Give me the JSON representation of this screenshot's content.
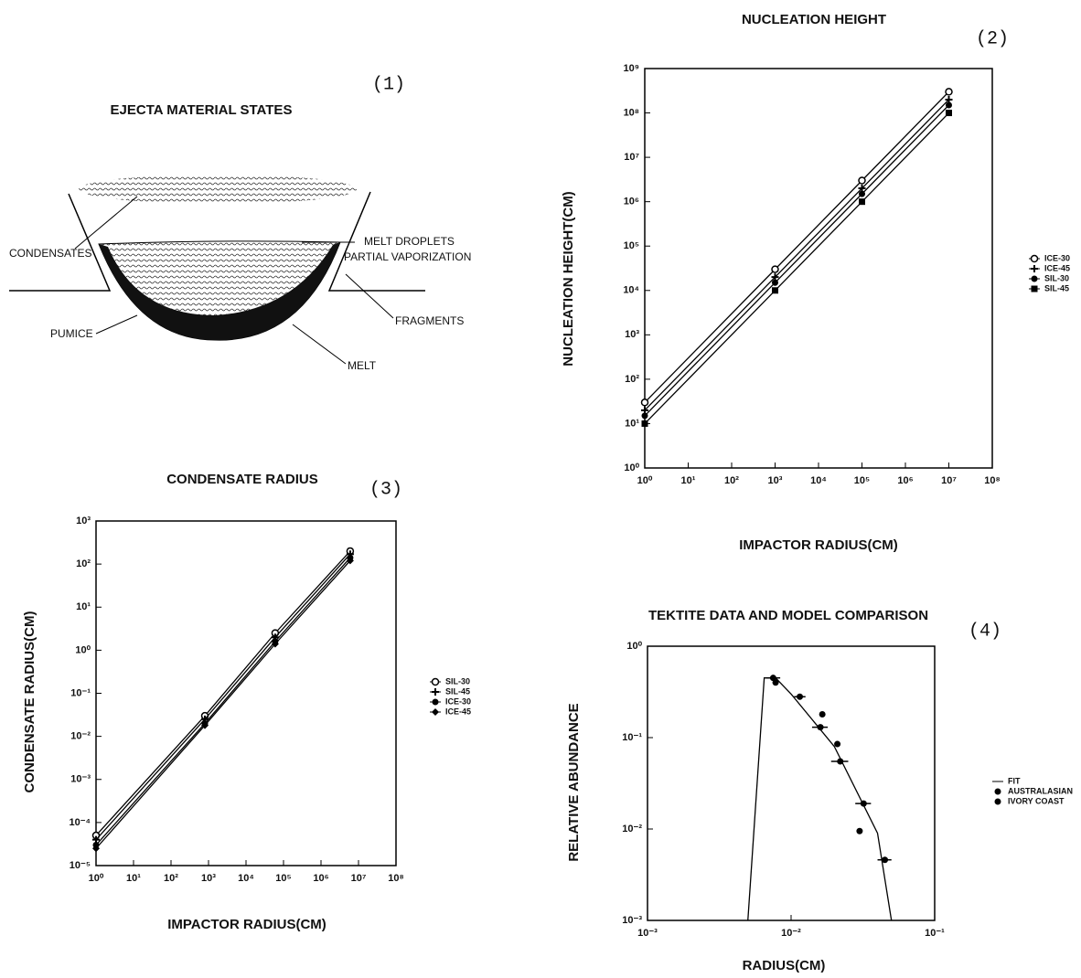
{
  "diagram": {
    "title": "EJECTA MATERIAL STATES",
    "panel_label": "(1)",
    "labels": [
      "CONDENSATES",
      "MELT DROPLETS",
      "PARTIAL VAPORIZATION",
      "FRAGMENTS",
      "PUMICE",
      "MELT"
    ]
  },
  "chart_data": [
    {
      "type": "line",
      "title": "NUCLEATION HEIGHT",
      "panel_label": "(2)",
      "x_label": "IMPACTOR RADIUS(CM)",
      "y_label": "NUCLEATION HEIGHT(CM)",
      "log": true,
      "xlim": [
        1,
        100000000
      ],
      "ylim": [
        1,
        1000000000
      ],
      "xticks": [
        {
          "value": 1,
          "label": "10⁰"
        },
        {
          "value": 10,
          "label": "10¹"
        },
        {
          "value": 100,
          "label": "10²"
        },
        {
          "value": 1000,
          "label": "10³"
        },
        {
          "value": 10000,
          "label": "10⁴"
        },
        {
          "value": 100000,
          "label": "10⁵"
        },
        {
          "value": 1000000,
          "label": "10⁶"
        },
        {
          "value": 10000000,
          "label": "10⁷"
        },
        {
          "value": 100000000,
          "label": "10⁸"
        }
      ],
      "yticks": [
        {
          "value": 1,
          "label": "10⁰"
        },
        {
          "value": 10,
          "label": "10¹"
        },
        {
          "value": 100,
          "label": "10²"
        },
        {
          "value": 1000,
          "label": "10³"
        },
        {
          "value": 10000,
          "label": "10⁴"
        },
        {
          "value": 100000,
          "label": "10⁵"
        },
        {
          "value": 1000000,
          "label": "10⁶"
        },
        {
          "value": 10000000,
          "label": "10⁷"
        },
        {
          "value": 100000000,
          "label": "10⁸"
        },
        {
          "value": 1000000000,
          "label": "10⁹"
        }
      ],
      "x": [
        1,
        1000,
        100000,
        10000000
      ],
      "series": [
        {
          "name": "ICE-30",
          "color": "#000",
          "marker": "circle",
          "line": true,
          "values": [
            30,
            30000,
            3000000,
            300000000
          ]
        },
        {
          "name": "ICE-45",
          "color": "#000",
          "marker": "plus",
          "line": true,
          "values": [
            20,
            20000,
            2000000,
            200000000
          ]
        },
        {
          "name": "SIL-30",
          "color": "#000",
          "marker": "filled-circle",
          "line": true,
          "values": [
            15,
            15000,
            1500000,
            150000000
          ]
        },
        {
          "name": "SIL-45",
          "color": "#000",
          "marker": "square",
          "line": true,
          "values": [
            10,
            10000,
            1000000,
            100000000
          ]
        }
      ]
    },
    {
      "type": "line",
      "title": "CONDENSATE RADIUS",
      "panel_label": "(3)",
      "x_label": "IMPACTOR RADIUS(CM)",
      "y_label": "CONDENSATE RADIUS(CM)",
      "log": true,
      "xlim": [
        1,
        100000000
      ],
      "ylim": [
        1e-05,
        1000
      ],
      "xticks": [
        {
          "value": 1,
          "label": "10⁰"
        },
        {
          "value": 10,
          "label": "10¹"
        },
        {
          "value": 100,
          "label": "10²"
        },
        {
          "value": 1000,
          "label": "10³"
        },
        {
          "value": 10000,
          "label": "10⁴"
        },
        {
          "value": 100000,
          "label": "10⁵"
        },
        {
          "value": 1000000,
          "label": "10⁶"
        },
        {
          "value": 10000000,
          "label": "10⁷"
        },
        {
          "value": 100000000,
          "label": "10⁸"
        }
      ],
      "yticks": [
        {
          "value": 1e-05,
          "label": "10⁻⁵"
        },
        {
          "value": 0.0001,
          "label": "10⁻⁴"
        },
        {
          "value": 0.001,
          "label": "10⁻³"
        },
        {
          "value": 0.01,
          "label": "10⁻²"
        },
        {
          "value": 0.1,
          "label": "10⁻¹"
        },
        {
          "value": 1,
          "label": "10⁰"
        },
        {
          "value": 10,
          "label": "10¹"
        },
        {
          "value": 100,
          "label": "10²"
        },
        {
          "value": 1000,
          "label": "10³"
        }
      ],
      "x": [
        1,
        800,
        60000,
        6000000
      ],
      "series": [
        {
          "name": "SIL-30",
          "color": "#000",
          "marker": "circle",
          "line": true,
          "values": [
            5e-05,
            0.03,
            2.5,
            200
          ]
        },
        {
          "name": "SIL-45",
          "color": "#000",
          "marker": "plus",
          "line": true,
          "values": [
            4e-05,
            0.025,
            2,
            170
          ]
        },
        {
          "name": "ICE-30",
          "color": "#000",
          "marker": "filled-circle",
          "line": true,
          "values": [
            3e-05,
            0.02,
            1.6,
            140
          ]
        },
        {
          "name": "ICE-45",
          "color": "#000",
          "marker": "diamond",
          "line": true,
          "values": [
            2.5e-05,
            0.018,
            1.4,
            120
          ]
        }
      ]
    },
    {
      "type": "line",
      "title": "TEKTITE DATA AND MODEL COMPARISON",
      "panel_label": "(4)",
      "x_label": "RADIUS(CM)",
      "y_label": "RELATIVE ABUNDANCE",
      "log": true,
      "xlim": [
        0.001,
        0.1
      ],
      "ylim": [
        0.001,
        1
      ],
      "xticks": [
        {
          "value": 0.001,
          "label": "10⁻³"
        },
        {
          "value": 0.01,
          "label": "10⁻²"
        },
        {
          "value": 0.1,
          "label": "10⁻¹"
        }
      ],
      "yticks": [
        {
          "value": 0.001,
          "label": "10⁻³"
        },
        {
          "value": 0.01,
          "label": "10⁻²"
        },
        {
          "value": 0.1,
          "label": "10⁻¹"
        },
        {
          "value": 1,
          "label": "10⁰"
        }
      ],
      "series": [
        {
          "name": "FIT",
          "color": "#000",
          "line": true,
          "x": [
            0.005,
            0.0065,
            0.0078,
            0.01,
            0.02,
            0.04,
            0.05
          ],
          "values": [
            0.001,
            0.45,
            0.45,
            0.3,
            0.08,
            0.009,
            0.001
          ]
        },
        {
          "name": "AUSTRALASIAN",
          "color": "#000",
          "marker": "filled-circle",
          "line": false,
          "x": [
            0.0075,
            0.0115,
            0.016,
            0.022,
            0.032,
            0.045
          ],
          "x_low": [
            0.0067,
            0.0105,
            0.014,
            0.019,
            0.028,
            0.04
          ],
          "x_high": [
            0.0084,
            0.0126,
            0.018,
            0.025,
            0.036,
            0.05
          ],
          "values": [
            0.45,
            0.28,
            0.13,
            0.055,
            0.019,
            0.0046
          ]
        },
        {
          "name": "IVORY COAST",
          "color": "#000",
          "marker": "filled-circle",
          "line": false,
          "x": [
            0.0078,
            0.0165,
            0.021,
            0.03
          ],
          "values": [
            0.4,
            0.18,
            0.085,
            0.0095
          ]
        }
      ]
    }
  ]
}
